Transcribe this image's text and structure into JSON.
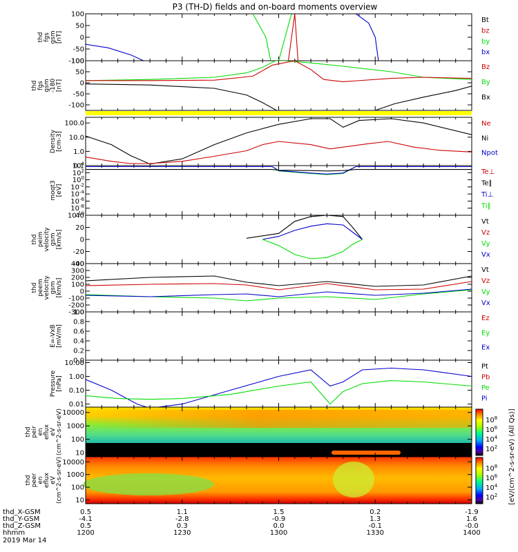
{
  "title": "P3 (TH-D) fields and on-board moments overview",
  "footer": {
    "row_labels": [
      "thd_X-GSM",
      "thd_Y-GSM",
      "thd_Z-GSM",
      "hhmm"
    ],
    "date": "2019 Mar 14",
    "columns": [
      [
        "0.5",
        "-4.1",
        "0.5",
        "1200"
      ],
      [
        "1.1",
        "-2.8",
        "0.3",
        "1230"
      ],
      [
        "1.5",
        "-0.9",
        "0.0",
        "1300"
      ],
      [
        "0.2",
        "1.3",
        "-0.1",
        "1330"
      ],
      [
        "-1.9",
        "1.6",
        "-0.0",
        "1400"
      ]
    ]
  },
  "colorbar": {
    "label": "[eV/(cm^2-s-sr-eV) (All Qs)]",
    "upper_ticks": [
      "10^2",
      "10^4",
      "10^6",
      "10^8"
    ],
    "lower_ticks": [
      "10^2",
      "10^4",
      "10^6",
      "10^8"
    ]
  },
  "colors": {
    "black": "#000000",
    "red": "#cc0000",
    "green": "#00dd00",
    "blue": "#0000cc",
    "yellow": "#ffff00"
  },
  "chart_data": [
    {
      "type": "line",
      "ylabel": [
        "thd",
        "fgs",
        "gsm",
        "[nT]"
      ],
      "ylim": [
        -100,
        100
      ],
      "yticks": [
        "100",
        "50",
        "0",
        "-50",
        "-100"
      ],
      "legend": [
        {
          "name": "Bt",
          "color": "black"
        },
        {
          "name": "bz",
          "color": "red"
        },
        {
          "name": "by",
          "color": "green"
        },
        {
          "name": "bx",
          "color": "blue"
        }
      ],
      "series": [
        {
          "name": "bx",
          "x": [
            "12:00",
            "12:07",
            "12:14",
            "12:18"
          ],
          "y": [
            -30,
            -45,
            -75,
            -100
          ]
        },
        {
          "name": "by",
          "x": [
            "12:52",
            "12:54",
            "12:56",
            "12:57.5",
            "13:00",
            "13:04"
          ],
          "y": [
            100,
            50,
            0,
            -100,
            -100,
            100
          ]
        },
        {
          "name": "bz",
          "x": [
            "12:59",
            "13:03",
            "13:05",
            "13:06",
            "13:07.5"
          ],
          "y": [
            -100,
            -100,
            100,
            -100,
            -100
          ]
        },
        {
          "name": "bx2",
          "x": [
            "13:24",
            "13:28",
            "13:30",
            "13:31"
          ],
          "y": [
            100,
            60,
            0,
            -100
          ]
        }
      ]
    },
    {
      "type": "line",
      "ylabel": [
        "thd",
        "fgs",
        "gsm",
        "-180",
        "[nT]"
      ],
      "ylim": [
        -125,
        100
      ],
      "yticks": [
        "100",
        "50",
        "0",
        "-50",
        "-100"
      ],
      "legend": [
        {
          "name": "Bz",
          "color": "red"
        },
        {
          "name": "By",
          "color": "green"
        },
        {
          "name": "Bx",
          "color": "black"
        }
      ],
      "series": [
        {
          "name": "Bx",
          "x": [
            "12:00",
            "12:20",
            "12:40",
            "12:50",
            "12:55",
            "13:00",
            "13:05",
            "13:25",
            "13:30",
            "13:36",
            "13:45",
            "13:55",
            "14:00"
          ],
          "y": [
            -5,
            -10,
            -25,
            -55,
            -90,
            -130,
            -130,
            -130,
            -125,
            -95,
            -65,
            -35,
            -15
          ]
        },
        {
          "name": "By",
          "x": [
            "12:00",
            "12:20",
            "12:40",
            "12:50",
            "12:55",
            "12:59",
            "13:02",
            "13:10",
            "13:20",
            "13:35",
            "13:45",
            "14:00"
          ],
          "y": [
            10,
            15,
            25,
            45,
            70,
            100,
            100,
            90,
            75,
            50,
            25,
            15
          ]
        },
        {
          "name": "Bz",
          "x": [
            "12:00",
            "12:20",
            "12:40",
            "12:52",
            "12:58",
            "13:05",
            "13:10",
            "13:14",
            "13:20",
            "13:35",
            "13:45",
            "14:00"
          ],
          "y": [
            10,
            10,
            12,
            30,
            80,
            100,
            60,
            15,
            5,
            20,
            25,
            20
          ]
        }
      ]
    },
    {
      "type": "line",
      "ylabel": [
        "Density",
        "[cm-3]"
      ],
      "scale": "log",
      "ylim": [
        0.1,
        250
      ],
      "yticks": [
        "100.0",
        "10.0",
        "1.0",
        "0.1"
      ],
      "legend": [
        {
          "name": "Ne",
          "color": "red"
        },
        {
          "name": "Ni",
          "color": "black"
        },
        {
          "name": "Npot",
          "color": "blue"
        }
      ],
      "series": [
        {
          "name": "Ni",
          "x": [
            "12:00",
            "12:08",
            "12:14",
            "12:20",
            "12:30",
            "12:40",
            "12:50",
            "13:00",
            "13:10",
            "13:16",
            "13:20",
            "13:25",
            "13:35",
            "13:45",
            "14:00"
          ],
          "y": [
            12,
            3,
            0.5,
            0.13,
            0.3,
            3,
            20,
            80,
            200,
            200,
            50,
            150,
            200,
            100,
            15
          ]
        },
        {
          "name": "Ne",
          "x": [
            "12:00",
            "12:08",
            "12:14",
            "12:20",
            "12:30",
            "12:40",
            "12:50",
            "12:55",
            "13:00",
            "13:10",
            "13:16",
            "13:20",
            "13:28",
            "13:34",
            "13:42",
            "13:50",
            "14:00"
          ],
          "y": [
            0.4,
            0.2,
            0.14,
            0.14,
            0.2,
            0.45,
            1.1,
            3,
            5,
            3,
            1.5,
            2,
            3.5,
            5,
            2,
            1.2,
            0.9
          ]
        }
      ]
    },
    {
      "type": "line",
      "ylabel": [
        "moqt3",
        "[eV]"
      ],
      "scale": "log",
      "yticks": [
        "10^4",
        "10^2",
        "10^0",
        "10^-2",
        "10^-4",
        "10^-6",
        "10^-8",
        "10^-10"
      ],
      "legend": [
        {
          "name": "Te⊥",
          "color": "red"
        },
        {
          "name": "Te∥",
          "color": "black"
        },
        {
          "name": "Ti⊥",
          "color": "blue"
        },
        {
          "name": "Ti∥",
          "color": "green"
        }
      ],
      "series": [
        {
          "name": "Ti∥",
          "x": [
            "12:00",
            "12:58",
            "13:00",
            "13:10",
            "13:15",
            "13:20",
            "13:24",
            "14:00"
          ],
          "y": [
            5000,
            5000,
            300,
            60,
            30,
            60,
            5000,
            5000
          ]
        },
        {
          "name": "Ti⊥",
          "x": [
            "12:00",
            "12:58",
            "13:00",
            "13:10",
            "13:15",
            "13:20",
            "13:24",
            "14:00"
          ],
          "y": [
            5000,
            5000,
            400,
            80,
            40,
            80,
            5000,
            5000
          ]
        },
        {
          "name": "Te∥",
          "x": [
            "12:00",
            "12:58",
            "13:00",
            "13:10",
            "13:15",
            "13:20",
            "13:24",
            "14:00"
          ],
          "y": [
            800,
            800,
            500,
            400,
            300,
            400,
            800,
            800
          ]
        }
      ]
    },
    {
      "type": "line",
      "ylabel": [
        "thd",
        "peim",
        "velocity",
        "gsm",
        "[km/s]"
      ],
      "ylim": [
        -40,
        40
      ],
      "yticks": [
        "40",
        "20",
        "0",
        "-20",
        "-40"
      ],
      "legend": [
        {
          "name": "Vt",
          "color": "black"
        },
        {
          "name": "Vz",
          "color": "red"
        },
        {
          "name": "Vy",
          "color": "green"
        },
        {
          "name": "Vx",
          "color": "blue"
        }
      ],
      "series": [
        {
          "name": "Vt",
          "x": [
            "12:50",
            "13:00",
            "13:05",
            "13:10",
            "13:15",
            "13:20",
            "13:23",
            "13:26"
          ],
          "y": [
            2,
            10,
            30,
            38,
            40,
            38,
            20,
            0
          ]
        },
        {
          "name": "Vx",
          "x": [
            "12:55",
            "13:00",
            "13:05",
            "13:10",
            "13:15",
            "13:20",
            "13:23",
            "13:26"
          ],
          "y": [
            0,
            5,
            15,
            22,
            26,
            24,
            12,
            0
          ]
        },
        {
          "name": "Vy",
          "x": [
            "12:55",
            "13:00",
            "13:05",
            "13:10",
            "13:15",
            "13:20",
            "13:23",
            "13:26"
          ],
          "y": [
            0,
            -10,
            -25,
            -32,
            -30,
            -20,
            -8,
            0
          ]
        }
      ]
    },
    {
      "type": "line",
      "ylabel": [
        "thd",
        "peem",
        "velocity",
        "gsm",
        "[km/s]"
      ],
      "ylim": [
        -300,
        400
      ],
      "yticks": [
        "400",
        "300",
        "200",
        "100",
        "0",
        "-100",
        "-200",
        "-300"
      ],
      "legend": [
        {
          "name": "Vt",
          "color": "black"
        },
        {
          "name": "Vz",
          "color": "red"
        },
        {
          "name": "Vy",
          "color": "green"
        },
        {
          "name": "Vx",
          "color": "blue"
        }
      ],
      "series": [
        {
          "name": "Vt",
          "x": [
            "12:00",
            "12:20",
            "12:40",
            "12:50",
            "13:00",
            "13:15",
            "13:30",
            "13:45",
            "14:00"
          ],
          "y": [
            150,
            200,
            220,
            130,
            80,
            140,
            70,
            90,
            220
          ]
        },
        {
          "name": "Vz",
          "x": [
            "12:00",
            "12:20",
            "12:40",
            "12:50",
            "13:00",
            "13:15",
            "13:30",
            "13:45",
            "14:00"
          ],
          "y": [
            80,
            100,
            110,
            90,
            20,
            110,
            20,
            30,
            140
          ]
        },
        {
          "name": "Vy",
          "x": [
            "12:00",
            "12:20",
            "12:40",
            "12:50",
            "13:00",
            "13:15",
            "13:30",
            "13:45",
            "14:00"
          ],
          "y": [
            -50,
            -80,
            -100,
            -140,
            -100,
            -80,
            -120,
            -40,
            20
          ]
        },
        {
          "name": "Vx",
          "x": [
            "12:00",
            "12:20",
            "12:40",
            "12:50",
            "13:00",
            "13:15",
            "13:30",
            "13:45",
            "14:00"
          ],
          "y": [
            -60,
            -80,
            -50,
            -40,
            -80,
            -10,
            -60,
            -30,
            30
          ]
        }
      ]
    },
    {
      "type": "line",
      "ylabel": [
        "E=-VxB",
        "[mV/m]"
      ],
      "ylim": [
        0,
        1
      ],
      "yticks": [
        "1.0",
        "0.8",
        "0.6",
        "0.4",
        "0.2",
        "0.0"
      ],
      "legend": [
        {
          "name": "Ez",
          "color": "red"
        },
        {
          "name": "Ey",
          "color": "green"
        },
        {
          "name": "Ex",
          "color": "blue"
        }
      ],
      "series": []
    },
    {
      "type": "line",
      "ylabel": [
        "Pressure",
        "[nPa]"
      ],
      "scale": "log",
      "ylim": [
        0.006,
        15
      ],
      "yticks": [
        "10.00",
        "1.00",
        "0.10",
        "0.01"
      ],
      "legend": [
        {
          "name": "Pt",
          "color": "black"
        },
        {
          "name": "Pb",
          "color": "red"
        },
        {
          "name": "Pe",
          "color": "green"
        },
        {
          "name": "Pi",
          "color": "blue"
        }
      ],
      "series": [
        {
          "name": "Pi",
          "x": [
            "12:00",
            "12:08",
            "12:16",
            "12:20",
            "12:30",
            "12:45",
            "13:00",
            "13:10",
            "13:16",
            "13:20",
            "13:26",
            "13:35",
            "13:45",
            "14:00"
          ],
          "y": [
            0.6,
            0.1,
            0.01,
            0.005,
            0.01,
            0.1,
            1,
            3,
            0.2,
            0.4,
            3,
            4,
            3,
            1
          ]
        },
        {
          "name": "Pe",
          "x": [
            "12:00",
            "12:10",
            "12:20",
            "12:30",
            "12:45",
            "13:00",
            "13:10",
            "13:16",
            "13:20",
            "13:26",
            "13:35",
            "13:45",
            "14:00"
          ],
          "y": [
            0.04,
            0.025,
            0.022,
            0.025,
            0.05,
            0.2,
            0.4,
            0.01,
            0.08,
            0.3,
            0.5,
            0.4,
            0.2
          ]
        }
      ]
    },
    {
      "type": "heatmap",
      "ylabel": [
        "thd",
        "peir",
        "en",
        "eflux",
        "eV",
        "(cm^2-s-sr-eV)"
      ],
      "scale": "log",
      "ylim": [
        5,
        25000
      ],
      "yticks": [
        "10000",
        "1000",
        "100",
        "10"
      ]
    },
    {
      "type": "heatmap",
      "ylabel": [
        "thd",
        "peer",
        "en",
        "eflux",
        "eV",
        "(cm^2-s-sr-eV)"
      ],
      "scale": "log",
      "ylim": [
        5,
        25000
      ],
      "yticks": [
        "10000",
        "1000",
        "100",
        "10"
      ]
    }
  ]
}
